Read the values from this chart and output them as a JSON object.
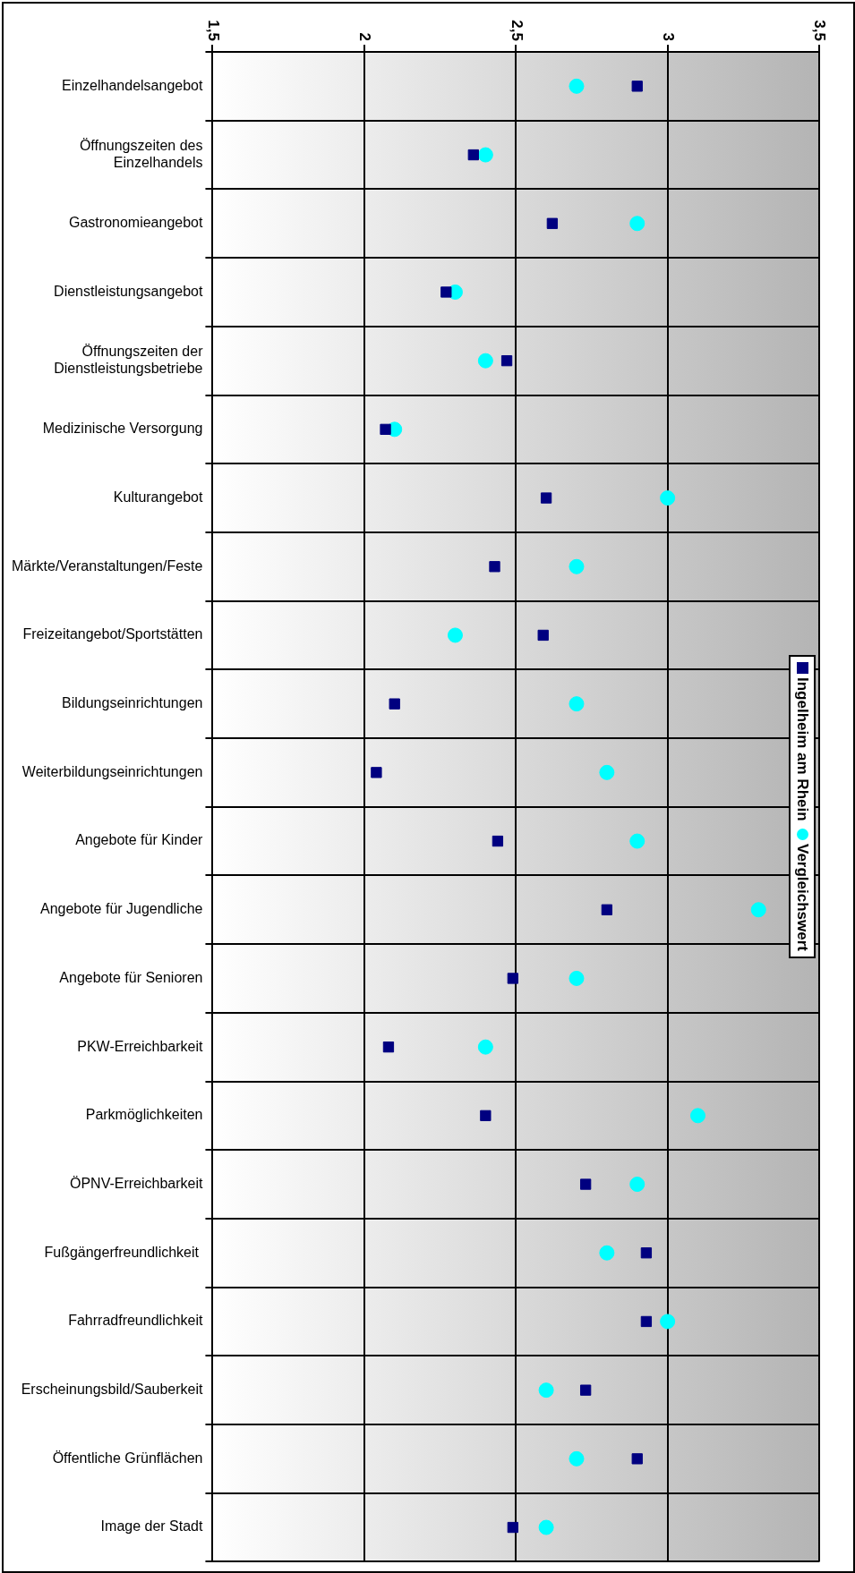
{
  "chart_data": {
    "type": "scatter",
    "orientation": "horizontal",
    "categories": [
      "Einzelhandelsangebot",
      "Öffnungszeiten des Einzelhandels",
      "Gastronomieangebot",
      "Dienstleistungsangebot",
      "Öffnungszeiten der Dienstleistungsbetriebe",
      "Medizinische Versorgung",
      "Kulturangebot",
      "Märkte/Veranstaltungen/Feste",
      "Freizeitangebot/Sportstätten",
      "Bildungseinrichtungen",
      "Weiterbildungseinrichtungen",
      "Angebote für Kinder",
      "Angebote für Jugendliche",
      "Angebote für Senioren",
      "PKW-Erreichbarkeit",
      "Parkmöglichkeiten",
      "ÖPNV-Erreichbarkeit",
      "Fußgängerfreundlichkeit ",
      "Fahrradfreundlichkeit",
      "Erscheinungsbild/Sauberkeit",
      "Öffentliche Grünflächen",
      "Image der Stadt"
    ],
    "series": [
      {
        "name": "Ingelheim am Rhein",
        "color": "#000080",
        "marker": "square",
        "values": [
          2.9,
          2.36,
          2.62,
          2.27,
          2.47,
          2.07,
          2.6,
          2.43,
          2.59,
          2.1,
          2.04,
          2.44,
          2.8,
          2.49,
          2.08,
          2.4,
          2.73,
          2.93,
          2.93,
          2.73,
          2.9,
          2.49
        ]
      },
      {
        "name": "Vergleichswert",
        "color": "#00ffff",
        "marker": "circle",
        "values": [
          2.7,
          2.4,
          2.9,
          2.3,
          2.4,
          2.1,
          3.0,
          2.7,
          2.3,
          2.7,
          2.8,
          2.9,
          3.3,
          2.7,
          2.4,
          3.1,
          2.9,
          2.8,
          3.0,
          2.6,
          2.7,
          2.6
        ]
      }
    ],
    "xlim": [
      1.5,
      3.5
    ],
    "xticks": [
      {
        "value": 1.5,
        "label": "1,5"
      },
      2,
      {
        "value": 2.5,
        "label": "2,5"
      },
      3,
      {
        "value": 3.5,
        "label": "3,5"
      }
    ],
    "grid": true,
    "legend": "right"
  }
}
